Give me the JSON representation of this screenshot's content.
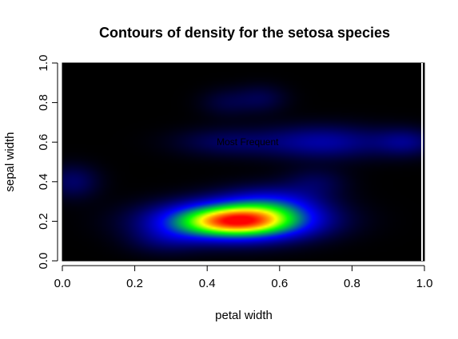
{
  "chart_data": {
    "type": "heatmap",
    "title": "Contours of density for the setosa species",
    "xlabel": "petal width",
    "ylabel": "sepal width",
    "xlim": [
      0,
      1
    ],
    "ylim": [
      0,
      1
    ],
    "x_ticks": [
      "0.0",
      "0.2",
      "0.4",
      "0.6",
      "0.8",
      "1.0"
    ],
    "y_ticks": [
      "0.0",
      "0.2",
      "0.4",
      "0.6",
      "0.8",
      "1.0"
    ],
    "colormap": [
      "#000000",
      "#0000ff",
      "#00ff00",
      "#ffff00",
      "#ff0000"
    ],
    "annotation": {
      "text": "Most Frequent",
      "x": 0.6,
      "y": 0.6
    },
    "density_peaks": [
      {
        "x": 0.48,
        "y": 0.2,
        "sx": 0.14,
        "sy": 0.065,
        "w": 1.0
      },
      {
        "x": 0.58,
        "y": 0.3,
        "sx": 0.1,
        "sy": 0.06,
        "w": 0.22
      },
      {
        "x": 0.72,
        "y": 0.6,
        "sx": 0.12,
        "sy": 0.06,
        "w": 0.22
      },
      {
        "x": 0.95,
        "y": 0.6,
        "sx": 0.06,
        "sy": 0.05,
        "w": 0.16
      },
      {
        "x": 0.45,
        "y": 0.6,
        "sx": 0.1,
        "sy": 0.05,
        "w": 0.12
      },
      {
        "x": 0.03,
        "y": 0.4,
        "sx": 0.05,
        "sy": 0.06,
        "w": 0.14
      },
      {
        "x": 0.55,
        "y": 0.82,
        "sx": 0.05,
        "sy": 0.05,
        "w": 0.1
      },
      {
        "x": 0.28,
        "y": 0.1,
        "sx": 0.07,
        "sy": 0.05,
        "w": 0.1
      },
      {
        "x": 0.7,
        "y": 0.4,
        "sx": 0.06,
        "sy": 0.05,
        "w": 0.1
      },
      {
        "x": 0.45,
        "y": 0.8,
        "sx": 0.05,
        "sy": 0.05,
        "w": 0.08
      }
    ]
  }
}
